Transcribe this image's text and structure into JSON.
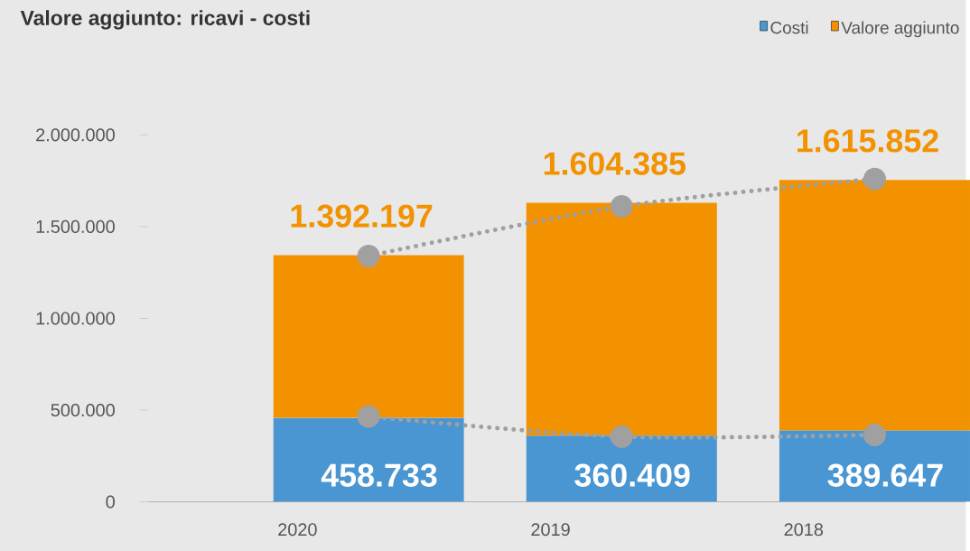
{
  "chart_data": {
    "type": "bar",
    "title": "Valore aggiunto: ricavi - costi",
    "categories": [
      "2020",
      "2019",
      "2018"
    ],
    "series": [
      {
        "name": "Costi",
        "color": "#4a96d2",
        "values": [
          458733,
          360409,
          389647
        ],
        "value_labels": [
          "458.733",
          "360.409",
          "389.647"
        ]
      },
      {
        "name": "Valore aggiunto",
        "color": "#f29200",
        "values": [
          886000,
          1270000,
          1365000
        ]
      },
      {
        "type": "line",
        "color": "#a0a0a0",
        "values": [
          1340000,
          1610000,
          1760000
        ],
        "marker": "circle",
        "line_style": "dotted"
      },
      {
        "type": "line",
        "color": "#a0a0a0",
        "values": [
          465000,
          355000,
          365000
        ],
        "marker": "circle",
        "line_style": "dotted"
      }
    ],
    "stacked": true,
    "annotations": [
      "1.392.197",
      "1.604.385",
      "1.615.852"
    ],
    "ylim": [
      0,
      2000000
    ],
    "yticks": [
      {
        "value": 0,
        "label": "0"
      },
      {
        "value": 500000,
        "label": "500.000"
      },
      {
        "value": 1000000,
        "label": "1.000.000"
      },
      {
        "value": 1500000,
        "label": "1.500.000"
      },
      {
        "value": 2000000,
        "label": "2.000.000"
      }
    ],
    "legend": "top right",
    "grid": false
  }
}
